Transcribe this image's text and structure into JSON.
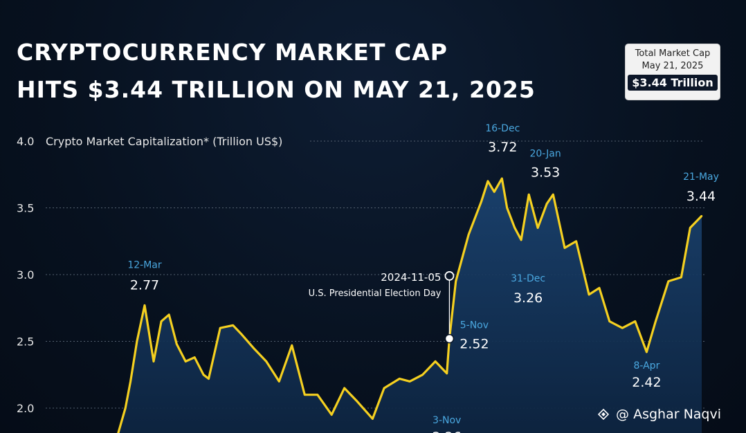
{
  "title": {
    "line1": "CRYPTOCURRENCY MARKET CAP",
    "line2": "HITS $3.44 TRILLION ON MAY 21, 2025"
  },
  "badge": {
    "label": "Total Market Cap",
    "date": "May 21, 2025",
    "value": "$3.44 Trillion"
  },
  "watermark": "@ Asghar Naqvi",
  "colors": {
    "background": "#07111f",
    "line": "#f5d020",
    "area": "#14365e",
    "date_label": "#4aa8e0",
    "grid": "#53606f",
    "text": "#ffffff"
  },
  "chart_data": {
    "type": "area",
    "ylabel": "Crypto Market Capitalization* (Trillion US$)",
    "ylim": [
      2.0,
      4.0
    ],
    "yticks": [
      "2.0",
      "2.5",
      "3.0",
      "3.5",
      "4.0"
    ],
    "grid": true,
    "x": [
      "2024-02-20",
      "2024-02-26",
      "2024-03-01",
      "2024-03-06",
      "2024-03-12",
      "2024-03-19",
      "2024-03-25",
      "2024-03-31",
      "2024-04-06",
      "2024-04-13",
      "2024-04-20",
      "2024-04-27",
      "2024-05-01",
      "2024-05-10",
      "2024-05-20",
      "2024-05-27",
      "2024-06-05",
      "2024-06-15",
      "2024-06-25",
      "2024-07-05",
      "2024-07-15",
      "2024-07-25",
      "2024-08-05",
      "2024-08-15",
      "2024-08-25",
      "2024-09-06",
      "2024-09-15",
      "2024-09-27",
      "2024-10-05",
      "2024-10-15",
      "2024-10-25",
      "2024-11-03",
      "2024-11-05",
      "2024-11-10",
      "2024-11-20",
      "2024-11-30",
      "2024-12-05",
      "2024-12-10",
      "2024-12-16",
      "2024-12-20",
      "2024-12-26",
      "2024-12-31",
      "2025-01-06",
      "2025-01-13",
      "2025-01-20",
      "2025-01-25",
      "2025-02-03",
      "2025-02-12",
      "2025-02-22",
      "2025-03-02",
      "2025-03-10",
      "2025-03-20",
      "2025-03-30",
      "2025-04-08",
      "2025-04-15",
      "2025-04-25",
      "2025-05-05",
      "2025-05-12",
      "2025-05-21"
    ],
    "y": [
      1.8,
      2.0,
      2.2,
      2.5,
      2.77,
      2.35,
      2.65,
      2.7,
      2.48,
      2.35,
      2.38,
      2.25,
      2.22,
      2.6,
      2.62,
      2.55,
      2.45,
      2.35,
      2.2,
      2.47,
      2.1,
      2.1,
      1.95,
      2.15,
      2.05,
      1.92,
      2.15,
      2.22,
      2.2,
      2.25,
      2.35,
      2.26,
      2.52,
      2.95,
      3.3,
      3.55,
      3.7,
      3.62,
      3.72,
      3.5,
      3.35,
      3.26,
      3.6,
      3.35,
      3.53,
      3.6,
      3.2,
      3.25,
      2.85,
      2.9,
      2.65,
      2.6,
      2.65,
      2.42,
      2.65,
      2.95,
      2.98,
      3.35,
      3.44
    ],
    "annotations": [
      {
        "date": "12-Mar",
        "value": "2.77",
        "x": "2024-03-12",
        "y": 2.77,
        "pos": "above"
      },
      {
        "date": "3-Nov",
        "value": "2.26",
        "x": "2024-11-03",
        "y": 2.26,
        "pos": "below"
      },
      {
        "date": "5-Nov",
        "value": "2.52",
        "x": "2024-11-05",
        "y": 2.52,
        "pos": "right"
      },
      {
        "date": "16-Dec",
        "value": "3.72",
        "x": "2024-12-16",
        "y": 3.72,
        "pos": "above"
      },
      {
        "date": "31-Dec",
        "value": "3.26",
        "x": "2024-12-31",
        "y": 3.26,
        "pos": "below"
      },
      {
        "date": "20-Jan",
        "value": "3.53",
        "x": "2025-01-20",
        "y": 3.53,
        "pos": "above"
      },
      {
        "date": "8-Apr",
        "value": "2.42",
        "x": "2025-04-08",
        "y": 2.42,
        "pos": "below"
      },
      {
        "date": "21-May",
        "value": "3.44",
        "x": "2025-05-21",
        "y": 3.44,
        "pos": "above"
      }
    ],
    "event": {
      "date": "2024-11-05",
      "label": "U.S. Presidential Election Day",
      "x": "2024-11-05",
      "y_from": 2.52,
      "y_to": 2.99
    }
  }
}
